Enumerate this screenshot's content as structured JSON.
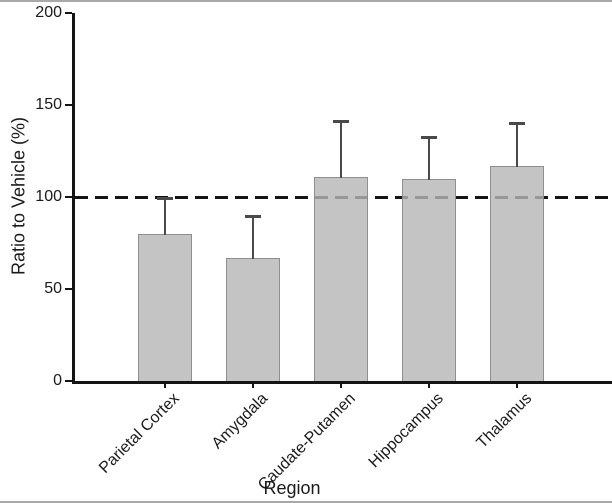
{
  "figure": {
    "ylabel": "Ratio to Vehicle (%)",
    "xlabel": "Region"
  },
  "chart_data": {
    "type": "bar",
    "title": "",
    "xlabel": "Region",
    "ylabel": "Ratio to Vehicle (%)",
    "categories": [
      "Parietal Cortex",
      "Amygdala",
      "Caudate-Putamen",
      "Hippocampus",
      "Thalamus"
    ],
    "values": [
      80,
      67,
      111,
      110,
      117
    ],
    "errors_upper": [
      20,
      23,
      31,
      23,
      24
    ],
    "reference_line_y": 100,
    "reference_line_style": "dashed",
    "ylim": [
      0,
      200
    ],
    "yticks": [
      0,
      50,
      100,
      150,
      200
    ],
    "grid": false,
    "legend": false,
    "colors": {
      "bar_fill": "#c4c4c4",
      "bar_border": "#8f8f8f",
      "error_bar": "#4a4a4a",
      "axis": "#141414",
      "reference_line": "#141414"
    }
  }
}
